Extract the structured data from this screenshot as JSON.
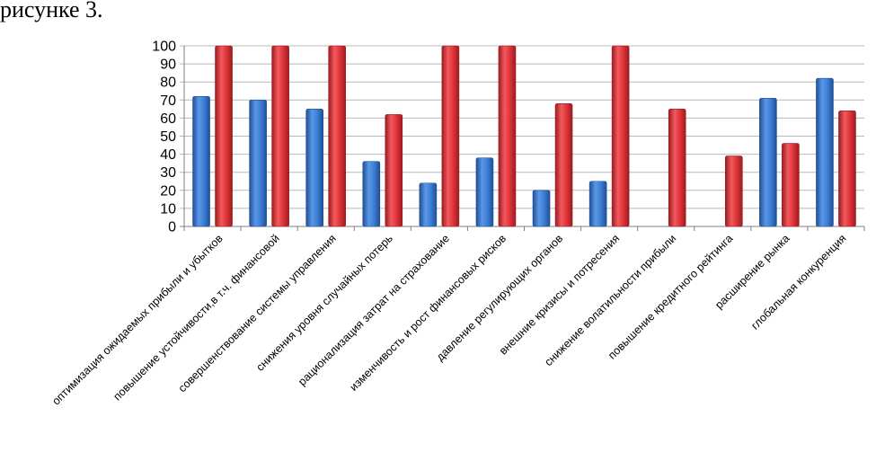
{
  "document": {
    "heading": "рисунке 3."
  },
  "colors": {
    "series1": "#3d7fd6",
    "series1_dark": "#1f4f96",
    "series2": "#e0353a",
    "series2_dark": "#9c1b1f",
    "grid": "#b8b8b8",
    "axis": "#7f7f7f"
  },
  "chart_data": {
    "type": "bar",
    "title": "",
    "xlabel": "",
    "ylabel": "",
    "ylim": [
      0,
      100
    ],
    "yticks": [
      0,
      10,
      20,
      30,
      40,
      50,
      60,
      70,
      80,
      90,
      100
    ],
    "grid": true,
    "legend": "none",
    "categories": [
      "оптимизация ожидаемых прибыли и убытков",
      "повышение устойчивости,в т.ч. финансовой",
      "совершенствование системы управления",
      "снижения уровня случайных потерь",
      "рационализация затрат на страхование",
      "изменчивость и рост финансовых рисков",
      "давление регулирующих органов",
      "внешние кризисы и потресения",
      "снижение волатильности прибыли",
      "повышение кредитного рейтинга",
      "расширение рынка",
      "глобальная конкуренция"
    ],
    "series": [
      {
        "values": [
          72,
          70,
          65,
          36,
          24,
          38,
          20,
          25,
          0,
          0,
          71,
          82
        ]
      },
      {
        "values": [
          100,
          100,
          100,
          62,
          100,
          100,
          68,
          100,
          65,
          39,
          46,
          64
        ]
      }
    ]
  }
}
